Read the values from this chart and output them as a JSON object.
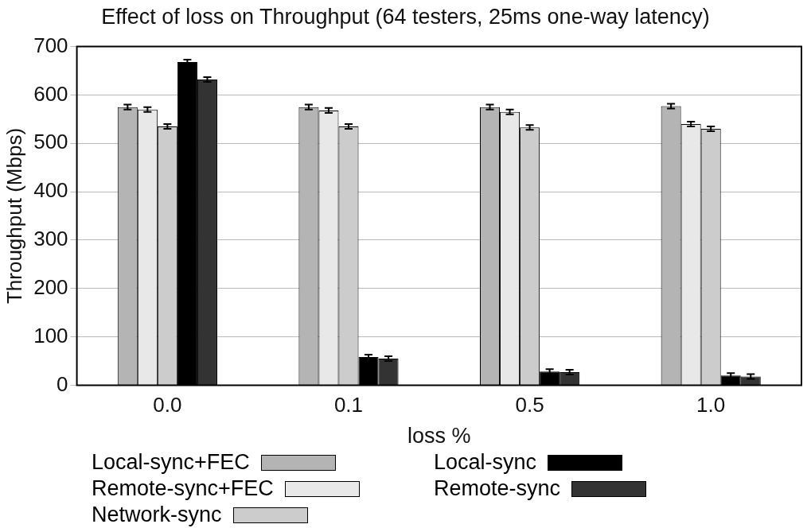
{
  "chart_data": {
    "type": "bar",
    "title": "Effect of loss on Throughput (64 testers, 25ms one-way latency)",
    "xlabel": "loss %",
    "ylabel": "Throughput (Mbps)",
    "categories": [
      "0.0",
      "0.1",
      "0.5",
      "1.0"
    ],
    "series": [
      {
        "name": "Local-sync+FEC",
        "color": "#b4b4b4",
        "values": [
          575,
          575,
          575,
          577
        ],
        "errors": [
          5,
          5,
          5,
          5
        ]
      },
      {
        "name": "Remote-sync+FEC",
        "color": "#e8e8e8",
        "values": [
          570,
          568,
          565,
          540
        ],
        "errors": [
          5,
          5,
          5,
          5
        ]
      },
      {
        "name": "Network-sync",
        "color": "#cccccc",
        "values": [
          535,
          535,
          533,
          530
        ],
        "errors": [
          5,
          5,
          5,
          5
        ]
      },
      {
        "name": "Local-sync",
        "color": "#000000",
        "values": [
          668,
          58,
          28,
          20
        ],
        "errors": [
          5,
          5,
          5,
          5
        ]
      },
      {
        "name": "Remote-sync",
        "color": "#333333",
        "values": [
          632,
          55,
          27,
          18
        ],
        "errors": [
          5,
          5,
          5,
          5
        ]
      }
    ],
    "ylim": [
      0,
      700
    ],
    "yticks": [
      0,
      100,
      200,
      300,
      400,
      500,
      600,
      700
    ],
    "grid": "y",
    "legend": "bottom"
  }
}
